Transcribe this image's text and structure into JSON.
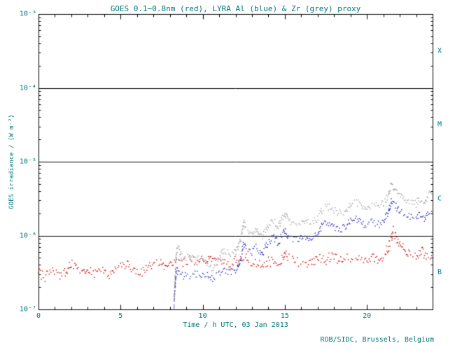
{
  "figure": {
    "bg": "#ffffff",
    "text_color": "#007878",
    "axis_color": "#000000"
  },
  "footer": {
    "credit": "ROB/SIDC, Brussels, Belgium"
  },
  "chart_data": {
    "type": "scatter",
    "title": "GOES 0.1−0.8nm (red), LYRA Al (blue) & Zr (grey) proxy",
    "xlabel": "Time / h UTC, 03 Jan 2013",
    "ylabel": "GOES irradiance / (W m⁻²)",
    "xlim": [
      0,
      24
    ],
    "x_major_tick_step": 5,
    "x_minor_tick_step": 1,
    "x_tick_labels": [
      "0",
      "5",
      "10",
      "15",
      "20"
    ],
    "y_scale": "log",
    "y_exp_range": [
      -7,
      -3
    ],
    "y_tick_exponents": [
      -3,
      -4,
      -5,
      -6,
      -7
    ],
    "y_tick_labels": [
      "10⁻³",
      "10⁻⁴",
      "10⁻⁵",
      "10⁻⁶",
      "10⁻⁷"
    ],
    "threshold_lines_exp": [
      -4,
      -5,
      -6
    ],
    "flare_classes": [
      {
        "label": "X",
        "mid_exp": -3.5
      },
      {
        "label": "M",
        "mid_exp": -4.5
      },
      {
        "label": "C",
        "mid_exp": -5.5
      },
      {
        "label": "B",
        "mid_exp": -6.5
      }
    ],
    "grid": false,
    "series": [
      {
        "name": "GOES 0.1-0.8nm",
        "color": "#cc0000",
        "jitter_log": 0.07,
        "points": [
          [
            0.0,
            3.1e-07
          ],
          [
            0.4,
            2.7e-07
          ],
          [
            0.8,
            3.3e-07
          ],
          [
            1.2,
            2.9e-07
          ],
          [
            1.6,
            3.2e-07
          ],
          [
            2.0,
            4.2e-07
          ],
          [
            2.3,
            3.5e-07
          ],
          [
            2.7,
            3e-07
          ],
          [
            3.0,
            3.6e-07
          ],
          [
            3.4,
            3.1e-07
          ],
          [
            3.8,
            3.4e-07
          ],
          [
            4.2,
            2.9e-07
          ],
          [
            4.6,
            3.2e-07
          ],
          [
            5.0,
            3.7e-07
          ],
          [
            5.4,
            4e-07
          ],
          [
            5.8,
            3.3e-07
          ],
          [
            6.2,
            3.1e-07
          ],
          [
            6.6,
            3.6e-07
          ],
          [
            7.0,
            4e-07
          ],
          [
            7.4,
            4.3e-07
          ],
          [
            7.8,
            3.6e-07
          ],
          [
            8.2,
            4e-07
          ],
          [
            8.6,
            4.3e-07
          ],
          [
            9.0,
            4.5e-07
          ],
          [
            9.4,
            4.8e-07
          ],
          [
            9.7,
            4.2e-07
          ],
          [
            10.0,
            4.6e-07
          ],
          [
            10.3,
            5e-07
          ],
          [
            10.6,
            4.3e-07
          ],
          [
            11.0,
            4.5e-07
          ],
          [
            11.4,
            4e-07
          ],
          [
            11.8,
            4.2e-07
          ],
          [
            12.2,
            4.8e-07
          ],
          [
            12.5,
            5.3e-07
          ],
          [
            12.8,
            4.6e-07
          ],
          [
            13.2,
            4.2e-07
          ],
          [
            13.6,
            3.9e-07
          ],
          [
            14.0,
            4.6e-07
          ],
          [
            14.4,
            4.2e-07
          ],
          [
            14.8,
            4.5e-07
          ],
          [
            15.0,
            6e-07
          ],
          [
            15.3,
            4.9e-07
          ],
          [
            15.7,
            4.4e-07
          ],
          [
            16.1,
            4.6e-07
          ],
          [
            16.5,
            4.3e-07
          ],
          [
            17.0,
            5e-07
          ],
          [
            17.4,
            4.6e-07
          ],
          [
            17.8,
            5.2e-07
          ],
          [
            18.2,
            4.8e-07
          ],
          [
            18.6,
            5.1e-07
          ],
          [
            19.0,
            4.8e-07
          ],
          [
            19.4,
            5.2e-07
          ],
          [
            19.8,
            4.7e-07
          ],
          [
            20.2,
            5.1e-07
          ],
          [
            20.6,
            4.8e-07
          ],
          [
            21.0,
            5.4e-07
          ],
          [
            21.3,
            6.8e-07
          ],
          [
            21.6,
            1.15e-06
          ],
          [
            21.8,
            9e-07
          ],
          [
            22.0,
            7.4e-07
          ],
          [
            22.3,
            6.4e-07
          ],
          [
            22.6,
            5.7e-07
          ],
          [
            23.0,
            5.2e-07
          ],
          [
            23.3,
            6.4e-07
          ],
          [
            23.6,
            5.3e-07
          ],
          [
            24.0,
            5.8e-07
          ]
        ]
      },
      {
        "name": "LYRA Al proxy",
        "color": "#2222bb",
        "jitter_log": 0.05,
        "points": [
          [
            8.25,
            1.1e-07
          ],
          [
            8.3,
            1.8e-07
          ],
          [
            8.35,
            2.6e-07
          ],
          [
            8.4,
            3.4e-07
          ],
          [
            8.5,
            3.1e-07
          ],
          [
            8.7,
            2.9e-07
          ],
          [
            9.0,
            2.8e-07
          ],
          [
            9.4,
            3e-07
          ],
          [
            9.8,
            2.9e-07
          ],
          [
            10.2,
            3e-07
          ],
          [
            10.5,
            2.5e-07
          ],
          [
            11.0,
            3e-07
          ],
          [
            11.4,
            3.3e-07
          ],
          [
            11.8,
            3.2e-07
          ],
          [
            12.1,
            3.6e-07
          ],
          [
            12.3,
            5e-07
          ],
          [
            12.5,
            8e-07
          ],
          [
            12.7,
            6.5e-07
          ],
          [
            13.0,
            6e-07
          ],
          [
            13.3,
            7e-07
          ],
          [
            13.6,
            5.6e-07
          ],
          [
            14.0,
            8e-07
          ],
          [
            14.3,
            9.5e-07
          ],
          [
            14.6,
            8e-07
          ],
          [
            15.0,
            1.2e-06
          ],
          [
            15.2,
            9.8e-07
          ],
          [
            15.5,
            8.8e-07
          ],
          [
            15.8,
            9.2e-07
          ],
          [
            16.1,
            8.8e-07
          ],
          [
            16.4,
            9.6e-07
          ],
          [
            16.7,
            9.2e-07
          ],
          [
            17.0,
            1.05e-06
          ],
          [
            17.3,
            1.4e-06
          ],
          [
            17.6,
            1.5e-06
          ],
          [
            18.0,
            1.3e-06
          ],
          [
            18.4,
            1.25e-06
          ],
          [
            18.7,
            1.3e-06
          ],
          [
            19.0,
            1.6e-06
          ],
          [
            19.3,
            1.7e-06
          ],
          [
            19.6,
            1.5e-06
          ],
          [
            20.0,
            1.35e-06
          ],
          [
            20.3,
            1.5e-06
          ],
          [
            20.7,
            1.4e-06
          ],
          [
            21.0,
            1.55e-06
          ],
          [
            21.3,
            2e-06
          ],
          [
            21.5,
            3e-06
          ],
          [
            21.7,
            2.6e-06
          ],
          [
            22.0,
            2.1e-06
          ],
          [
            22.3,
            1.9e-06
          ],
          [
            22.7,
            1.75e-06
          ],
          [
            23.0,
            1.7e-06
          ],
          [
            23.2,
            1.95e-06
          ],
          [
            23.5,
            1.75e-06
          ],
          [
            23.7,
            2.1e-06
          ],
          [
            24.0,
            2.3e-06
          ]
        ]
      },
      {
        "name": "LYRA Zr proxy",
        "color": "#a0a0a0",
        "jitter_log": 0.05,
        "points": [
          [
            8.25,
            1.2e-07
          ],
          [
            8.3,
            2.2e-07
          ],
          [
            8.35,
            3.8e-07
          ],
          [
            8.4,
            6e-07
          ],
          [
            8.5,
            7.2e-07
          ],
          [
            8.7,
            5.4e-07
          ],
          [
            9.0,
            4.8e-07
          ],
          [
            9.3,
            5.6e-07
          ],
          [
            9.6,
            5e-07
          ],
          [
            10.0,
            5.3e-07
          ],
          [
            10.3,
            4.2e-07
          ],
          [
            10.6,
            3.6e-07
          ],
          [
            11.0,
            5e-07
          ],
          [
            11.3,
            6.2e-07
          ],
          [
            11.7,
            5.4e-07
          ],
          [
            12.0,
            5.8e-07
          ],
          [
            12.3,
            8.5e-07
          ],
          [
            12.5,
            1.5e-06
          ],
          [
            12.7,
            1.15e-06
          ],
          [
            13.0,
            1e-06
          ],
          [
            13.3,
            1.2e-06
          ],
          [
            13.6,
            9e-07
          ],
          [
            14.0,
            1.4e-06
          ],
          [
            14.3,
            1.6e-06
          ],
          [
            14.6,
            1.3e-06
          ],
          [
            15.0,
            2e-06
          ],
          [
            15.2,
            1.6e-06
          ],
          [
            15.5,
            1.4e-06
          ],
          [
            15.8,
            1.5e-06
          ],
          [
            16.1,
            1.4e-06
          ],
          [
            16.4,
            1.6e-06
          ],
          [
            16.7,
            1.5e-06
          ],
          [
            17.0,
            1.7e-06
          ],
          [
            17.3,
            2.3e-06
          ],
          [
            17.6,
            2.5e-06
          ],
          [
            18.0,
            2.2e-06
          ],
          [
            18.4,
            2e-06
          ],
          [
            18.7,
            2.1e-06
          ],
          [
            19.0,
            2.7e-06
          ],
          [
            19.3,
            2.9e-06
          ],
          [
            19.6,
            2.6e-06
          ],
          [
            20.0,
            2.3e-06
          ],
          [
            20.3,
            2.6e-06
          ],
          [
            20.7,
            2.4e-06
          ],
          [
            21.0,
            2.7e-06
          ],
          [
            21.3,
            3.5e-06
          ],
          [
            21.5,
            5e-06
          ],
          [
            21.7,
            4.2e-06
          ],
          [
            22.0,
            3.5e-06
          ],
          [
            22.3,
            3.1e-06
          ],
          [
            22.7,
            2.8e-06
          ],
          [
            23.0,
            2.7e-06
          ],
          [
            23.2,
            3.2e-06
          ],
          [
            23.5,
            2.8e-06
          ],
          [
            23.7,
            3.4e-06
          ],
          [
            24.0,
            3.9e-06
          ]
        ]
      }
    ]
  }
}
